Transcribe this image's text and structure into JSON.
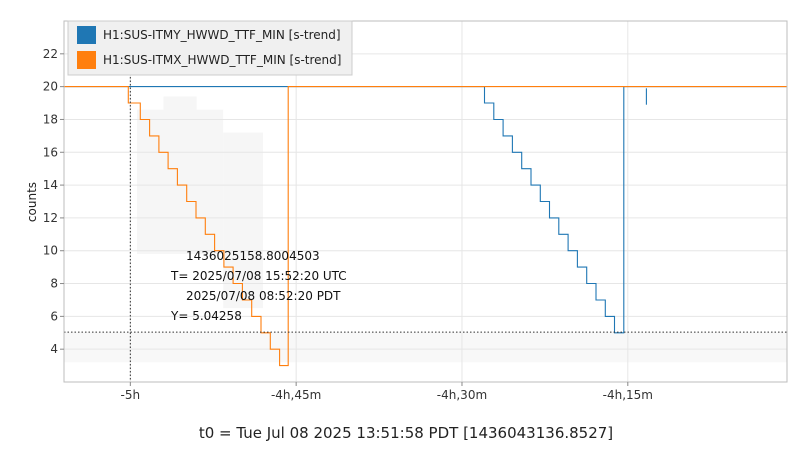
{
  "chart_data": {
    "type": "line",
    "ylabel": "counts",
    "xlim": [
      -5.1,
      -4.01
    ],
    "ylim": [
      2,
      24
    ],
    "y_ticks": [
      4,
      6,
      8,
      10,
      12,
      14,
      16,
      18,
      20,
      22
    ],
    "x_ticks": [
      {
        "value": -5.0,
        "label": "-5h"
      },
      {
        "value": -4.75,
        "label": "-4h,45m"
      },
      {
        "value": -4.5,
        "label": "-4h,30m"
      },
      {
        "value": -4.25,
        "label": "-4h,15m"
      }
    ],
    "grid": true,
    "legend_position": "top-left",
    "series": [
      {
        "name": "H1:SUS-ITMY_HWWD_TTF_MIN [s-trend]",
        "color": "#1f77b4",
        "segments": [
          [
            [
              -5.1,
              20
            ],
            [
              -4.466,
              20
            ],
            [
              -4.466,
              19
            ],
            [
              -4.452,
              19
            ],
            [
              -4.452,
              18
            ],
            [
              -4.438,
              18
            ],
            [
              -4.438,
              17
            ],
            [
              -4.424,
              17
            ],
            [
              -4.424,
              16
            ],
            [
              -4.41,
              16
            ],
            [
              -4.41,
              15
            ],
            [
              -4.396,
              15
            ],
            [
              -4.396,
              14
            ],
            [
              -4.382,
              14
            ],
            [
              -4.382,
              13
            ],
            [
              -4.368,
              13
            ],
            [
              -4.368,
              12
            ],
            [
              -4.354,
              12
            ],
            [
              -4.354,
              11
            ],
            [
              -4.34,
              11
            ],
            [
              -4.34,
              10
            ],
            [
              -4.326,
              10
            ],
            [
              -4.326,
              9
            ],
            [
              -4.312,
              9
            ],
            [
              -4.312,
              8
            ],
            [
              -4.298,
              8
            ],
            [
              -4.298,
              7
            ],
            [
              -4.284,
              7
            ],
            [
              -4.284,
              6
            ],
            [
              -4.27,
              6
            ],
            [
              -4.27,
              5
            ],
            [
              -4.256,
              5
            ],
            [
              -4.256,
              20
            ],
            [
              -4.01,
              20
            ]
          ],
          [
            [
              -4.222,
              19.9
            ],
            [
              -4.222,
              18.9
            ]
          ]
        ]
      },
      {
        "name": "H1:SUS-ITMX_HWWD_TTF_MIN [s-trend]",
        "color": "#ff7f0e",
        "segments": [
          [
            [
              -5.1,
              20
            ],
            [
              -5.003,
              20
            ],
            [
              -5.003,
              19
            ],
            [
              -4.985,
              19
            ],
            [
              -4.985,
              18
            ],
            [
              -4.971,
              18
            ],
            [
              -4.971,
              17
            ],
            [
              -4.957,
              17
            ],
            [
              -4.957,
              16
            ],
            [
              -4.943,
              16
            ],
            [
              -4.943,
              15
            ],
            [
              -4.929,
              15
            ],
            [
              -4.929,
              14
            ],
            [
              -4.915,
              14
            ],
            [
              -4.915,
              13
            ],
            [
              -4.901,
              13
            ],
            [
              -4.901,
              12
            ],
            [
              -4.887,
              12
            ],
            [
              -4.887,
              11
            ],
            [
              -4.873,
              11
            ],
            [
              -4.873,
              10
            ],
            [
              -4.859,
              10
            ],
            [
              -4.859,
              9
            ],
            [
              -4.845,
              9
            ],
            [
              -4.845,
              8
            ],
            [
              -4.831,
              8
            ],
            [
              -4.831,
              7
            ],
            [
              -4.817,
              7
            ],
            [
              -4.817,
              6
            ],
            [
              -4.803,
              6
            ],
            [
              -4.803,
              5
            ],
            [
              -4.789,
              5
            ],
            [
              -4.789,
              4
            ],
            [
              -4.775,
              4
            ],
            [
              -4.775,
              3
            ],
            [
              -4.762,
              3
            ],
            [
              -4.762,
              20
            ],
            [
              -4.01,
              20
            ]
          ]
        ]
      }
    ],
    "crosshair": {
      "x": -5.0,
      "y": 5.04258
    },
    "annotation": {
      "gps": "1436025158.8004503",
      "utc": "T= 2025/07/08 15:52:20 UTC",
      "local": "2025/07/08 08:52:20 PDT",
      "y": "Y= 5.04258"
    },
    "t0_label": "t0 = Tue Jul 08 2025 13:51:58 PDT [1436043136.8527]"
  }
}
